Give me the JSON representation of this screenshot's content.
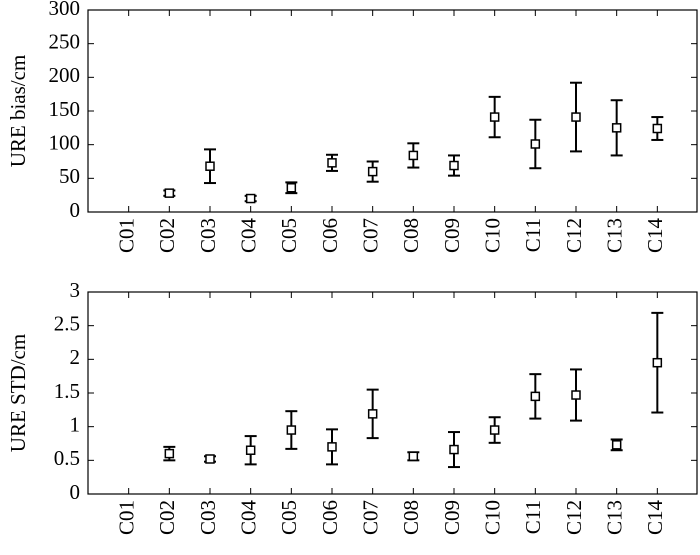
{
  "chart_data": [
    {
      "type": "errorbar",
      "ylabel": "URE bias/cm",
      "categories": [
        "C01",
        "C02",
        "C03",
        "C04",
        "C05",
        "C06",
        "C07",
        "C08",
        "C09",
        "C10",
        "C11",
        "C12",
        "C13",
        "C14"
      ],
      "values": [
        null,
        28,
        68,
        20,
        36,
        73,
        60,
        84,
        69,
        141,
        101,
        141,
        125,
        124
      ],
      "errors": [
        null,
        4,
        25,
        4,
        8,
        12,
        15,
        18,
        15,
        30,
        36,
        51,
        41,
        17
      ],
      "ylim": [
        0,
        300
      ],
      "yticks": [
        0,
        50,
        100,
        150,
        200,
        250,
        300
      ],
      "color": "#000000"
    },
    {
      "type": "errorbar",
      "ylabel": "URE STD/cm",
      "categories": [
        "C01",
        "C02",
        "C03",
        "C04",
        "C05",
        "C06",
        "C07",
        "C08",
        "C09",
        "C10",
        "C11",
        "C12",
        "C13",
        "C14"
      ],
      "values": [
        null,
        0.6,
        0.52,
        0.65,
        0.95,
        0.7,
        1.19,
        0.56,
        0.66,
        0.95,
        1.45,
        1.47,
        0.73,
        1.95
      ],
      "errors": [
        null,
        0.1,
        0.04,
        0.21,
        0.28,
        0.26,
        0.36,
        0.06,
        0.26,
        0.19,
        0.33,
        0.38,
        0.08,
        0.74
      ],
      "ylim": [
        0,
        3
      ],
      "yticks": [
        0,
        0.5,
        1,
        1.5,
        2,
        2.5,
        3
      ],
      "color": "#000000"
    }
  ]
}
